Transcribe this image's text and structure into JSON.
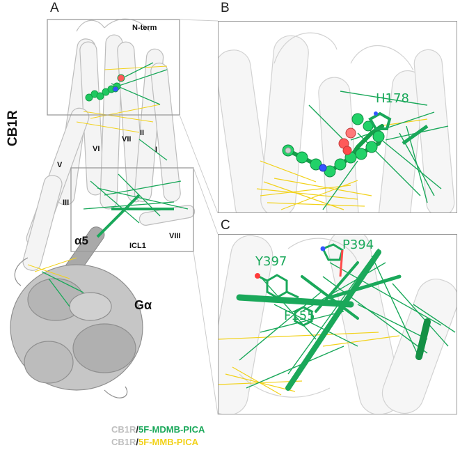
{
  "panels": {
    "a": "A",
    "b": "B",
    "c": "C"
  },
  "panel_a_labels": {
    "nterm": "N-term",
    "cb1r": "CB1R",
    "helix_ii": "II",
    "helix_vii": "VII",
    "helix_vi": "VI",
    "helix_i": "I",
    "helix_v": "V",
    "helix_iii": "III",
    "alpha5": "α5",
    "icl1": "ICL1",
    "helix_viii": "VIII",
    "galpha": "Gα"
  },
  "panel_b_labels": {
    "h178": "H178"
  },
  "panel_c_labels": {
    "y397": "Y397",
    "p394": "P394",
    "f155": "F155"
  },
  "legend": [
    {
      "receptor": "CB1R",
      "sep": "/",
      "ligand": "5F-MDMB-PICA",
      "ligand_color": "#1aa85a"
    },
    {
      "receptor": "CB1R",
      "sep": "/",
      "ligand": "5F-MMB-PICA",
      "ligand_color": "#f2d21b"
    }
  ],
  "colors": {
    "receptor": "#bfbfbf",
    "galpha": "#8c8c8c",
    "mdmb": "#1aa85a",
    "mmb": "#f2d21b",
    "inset_border": "#9a9a9a"
  }
}
